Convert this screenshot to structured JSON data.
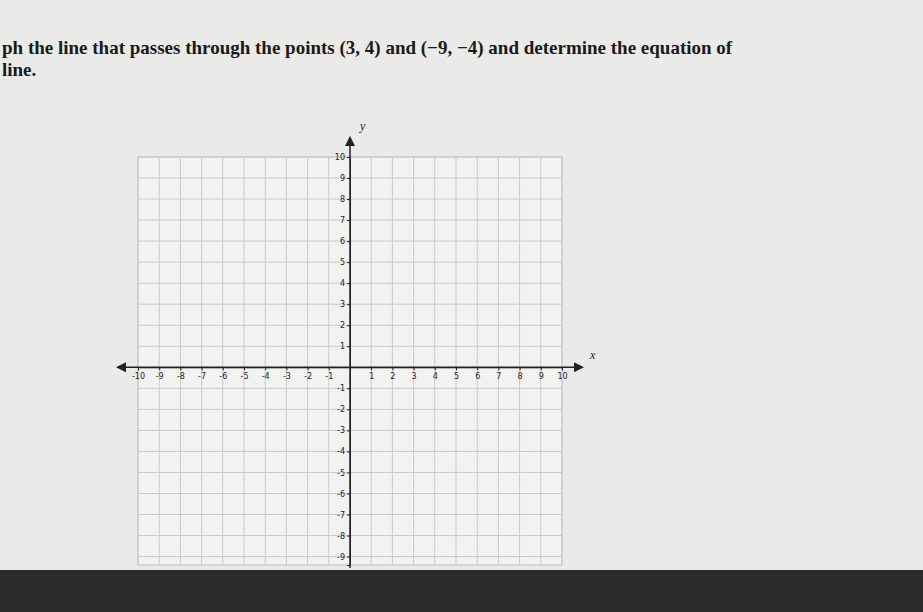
{
  "chart_data": {
    "type": "scatter",
    "title": [
      "ph the line that passes through the points (3, 4) and (−9, −4) and determine the equation of",
      "line."
    ],
    "x_label": "x",
    "y_label": "y",
    "xlim": [
      -10,
      10
    ],
    "ylim": [
      -9.4,
      10
    ],
    "xticks": [
      -10,
      -9,
      -8,
      -7,
      -6,
      -5,
      -4,
      -3,
      -2,
      -1,
      1,
      2,
      3,
      4,
      5,
      6,
      7,
      8,
      9,
      10
    ],
    "yticks": [
      -9,
      -8,
      -7,
      -6,
      -5,
      -4,
      -3,
      -2,
      -1,
      1,
      2,
      3,
      4,
      5,
      6,
      7,
      8,
      9,
      10
    ],
    "grid": true
  }
}
